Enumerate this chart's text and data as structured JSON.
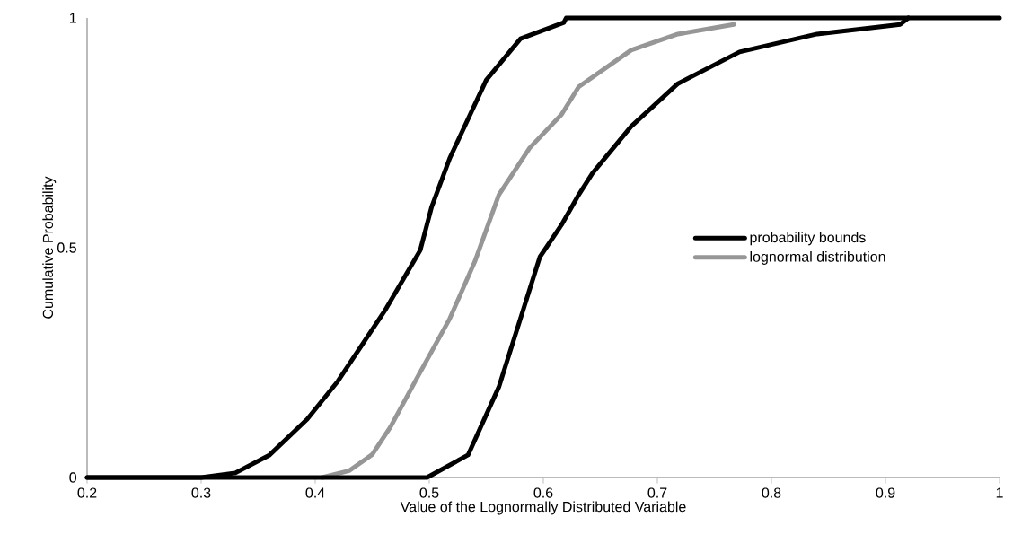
{
  "chart_data": {
    "type": "line",
    "xlabel": "Value of the Lognormally Distributed Variable",
    "ylabel": "Cumulative Probability",
    "xlim": [
      0.2,
      1
    ],
    "ylim": [
      0,
      1
    ],
    "xticks": [
      0.2,
      0.3,
      0.4,
      0.5,
      0.6,
      0.7,
      0.8,
      0.9,
      1
    ],
    "yticks": [
      0,
      0.5,
      1
    ],
    "grid": false,
    "legend": "right",
    "line_style": "solid",
    "series": [
      {
        "name": "probability bounds",
        "color": "#000000",
        "x": [
          0.2,
          0.3,
          0.33,
          0.36,
          0.393,
          0.42,
          0.461,
          0.492,
          0.502,
          0.518,
          0.55,
          0.58,
          0.618,
          0.62,
          1.0
        ],
        "values": [
          0,
          0,
          0.01,
          0.049,
          0.127,
          0.21,
          0.363,
          0.494,
          0.588,
          0.695,
          0.865,
          0.955,
          0.99,
          1,
          1
        ]
      },
      {
        "name": "lognormal distribution",
        "color": "#969696",
        "x": [
          0.406,
          0.43,
          0.45,
          0.466,
          0.49,
          0.518,
          0.54,
          0.561,
          0.588,
          0.616,
          0.631,
          0.677,
          0.718,
          0.767
        ],
        "values": [
          0,
          0.015,
          0.05,
          0.11,
          0.22,
          0.346,
          0.47,
          0.615,
          0.717,
          0.79,
          0.85,
          0.93,
          0.965,
          0.986
        ]
      },
      {
        "color": "#000000",
        "x": [
          0.2,
          0.498,
          0.534,
          0.561,
          0.58,
          0.597,
          0.616,
          0.631,
          0.643,
          0.677,
          0.718,
          0.772,
          0.84,
          0.913,
          0.92
        ],
        "values": [
          0,
          0,
          0.049,
          0.197,
          0.346,
          0.48,
          0.55,
          0.615,
          0.662,
          0.764,
          0.857,
          0.926,
          0.965,
          0.986,
          1
        ]
      }
    ]
  }
}
